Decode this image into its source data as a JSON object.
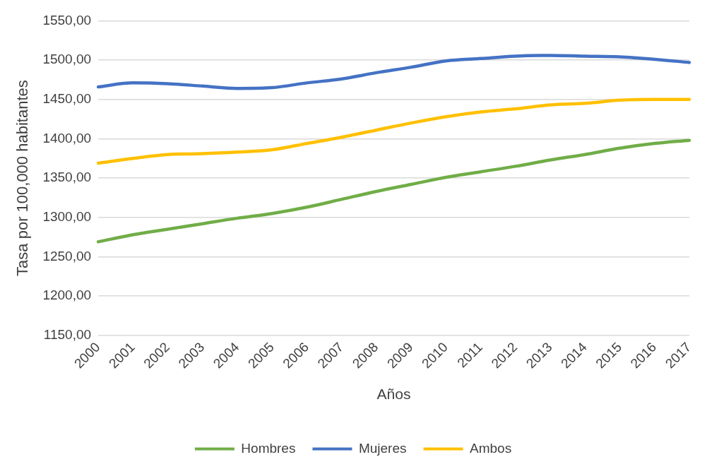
{
  "chart_data": {
    "type": "line",
    "xlabel": "Años",
    "ylabel": "Tasa por 100,000 habitantes",
    "categories": [
      "2000",
      "2001",
      "2002",
      "2003",
      "2004",
      "2005",
      "2006",
      "2007",
      "2008",
      "2009",
      "2010",
      "2011",
      "2012",
      "2013",
      "2014",
      "2015",
      "2016",
      "2017"
    ],
    "series": [
      {
        "name": "Hombres",
        "color": "#70ad47",
        "values": [
          1269,
          1278,
          1285,
          1292,
          1299,
          1305,
          1313,
          1323,
          1333,
          1342,
          1351,
          1358,
          1365,
          1373,
          1380,
          1388,
          1394,
          1398
        ]
      },
      {
        "name": "Mujeres",
        "color": "#4472c4",
        "values": [
          1466,
          1471,
          1470,
          1467,
          1464,
          1465,
          1471,
          1476,
          1484,
          1491,
          1499,
          1502,
          1505,
          1506,
          1505,
          1504,
          1501,
          1497
        ]
      },
      {
        "name": "Ambos",
        "color": "#ffc000",
        "values": [
          1369,
          1375,
          1380,
          1381,
          1383,
          1386,
          1394,
          1402,
          1411,
          1420,
          1428,
          1434,
          1438,
          1443,
          1445,
          1449,
          1450,
          1450
        ]
      }
    ],
    "ylim": [
      1150,
      1550
    ],
    "yticks": [
      {
        "value": 1150,
        "label": "1150,00"
      },
      {
        "value": 1200,
        "label": "1200,00"
      },
      {
        "value": 1250,
        "label": "1250,00"
      },
      {
        "value": 1300,
        "label": "1300,00"
      },
      {
        "value": 1350,
        "label": "1350,00"
      },
      {
        "value": 1400,
        "label": "1400,00"
      },
      {
        "value": 1450,
        "label": "1450,00"
      },
      {
        "value": 1500,
        "label": "1500,00"
      },
      {
        "value": 1550,
        "label": "1550,00"
      }
    ],
    "grid": "y",
    "legend": "bottom",
    "marker": "none",
    "line_style": "solid"
  }
}
